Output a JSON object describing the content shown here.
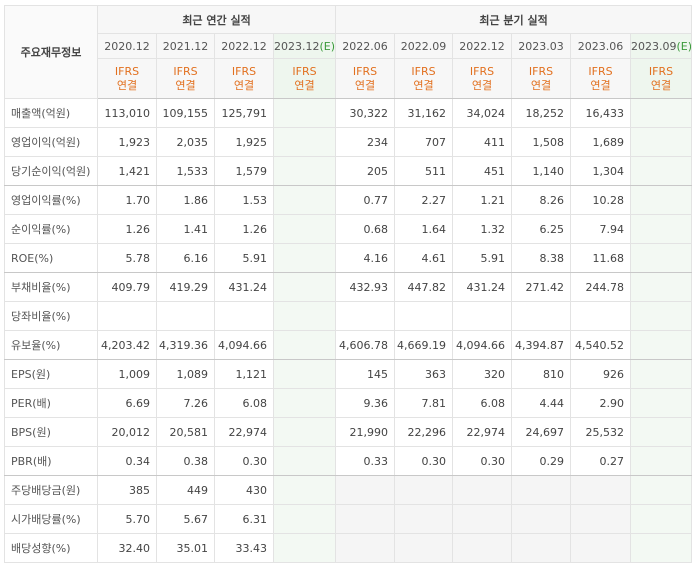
{
  "table": {
    "corner": "주요재무정보",
    "groups": [
      {
        "title": "최근 연간 실적",
        "columns": [
          {
            "period": "2020.12",
            "basis": [
              "IFRS",
              "연결"
            ]
          },
          {
            "period": "2021.12",
            "basis": [
              "IFRS",
              "연결"
            ]
          },
          {
            "period": "2022.12",
            "basis": [
              "IFRS",
              "연결"
            ]
          },
          {
            "period": "2023.12",
            "mark": "(E)",
            "basis": [
              "IFRS",
              "연결"
            ]
          }
        ]
      },
      {
        "title": "최근 분기 실적",
        "columns": [
          {
            "period": "2022.06",
            "basis": [
              "IFRS",
              "연결"
            ]
          },
          {
            "period": "2022.09",
            "basis": [
              "IFRS",
              "연결"
            ]
          },
          {
            "period": "2022.12",
            "basis": [
              "IFRS",
              "연결"
            ]
          },
          {
            "period": "2023.03",
            "basis": [
              "IFRS",
              "연결"
            ]
          },
          {
            "period": "2023.06",
            "basis": [
              "IFRS",
              "연결"
            ]
          },
          {
            "period": "2023.09",
            "mark": "(E)",
            "basis": [
              "IFRS",
              "연결"
            ]
          }
        ]
      }
    ],
    "rows": [
      {
        "label": "매출액(억원)",
        "values": [
          "113,010",
          "109,155",
          "125,791",
          null,
          "30,322",
          "31,162",
          "34,024",
          "18,252",
          "16,433",
          null
        ]
      },
      {
        "label": "영업이익(억원)",
        "values": [
          "1,923",
          "2,035",
          "1,925",
          null,
          "234",
          "707",
          "411",
          "1,508",
          "1,689",
          null
        ]
      },
      {
        "label": "당기순이익(억원)",
        "values": [
          "1,421",
          "1,533",
          "1,579",
          null,
          "205",
          "511",
          "451",
          "1,140",
          "1,304",
          null
        ]
      },
      {
        "label": "영업이익률(%)",
        "values": [
          "1.70",
          "1.86",
          "1.53",
          null,
          "0.77",
          "2.27",
          "1.21",
          "8.26",
          "10.28",
          null
        ]
      },
      {
        "label": "순이익률(%)",
        "values": [
          "1.26",
          "1.41",
          "1.26",
          null,
          "0.68",
          "1.64",
          "1.32",
          "6.25",
          "7.94",
          null
        ]
      },
      {
        "label": "ROE(%)",
        "values": [
          "5.78",
          "6.16",
          "5.91",
          null,
          "4.16",
          "4.61",
          "5.91",
          "8.38",
          "11.68",
          null
        ]
      },
      {
        "label": "부채비율(%)",
        "values": [
          "409.79",
          "419.29",
          "431.24",
          null,
          "432.93",
          "447.82",
          "431.24",
          "271.42",
          "244.78",
          null
        ]
      },
      {
        "label": "당좌비율(%)",
        "values": [
          null,
          null,
          null,
          null,
          null,
          null,
          null,
          null,
          null,
          null
        ]
      },
      {
        "label": "유보율(%)",
        "values": [
          "4,203.42",
          "4,319.36",
          "4,094.66",
          null,
          "4,606.78",
          "4,669.19",
          "4,094.66",
          "4,394.87",
          "4,540.52",
          null
        ]
      },
      {
        "label": "EPS(원)",
        "values": [
          "1,009",
          "1,089",
          "1,121",
          null,
          "145",
          "363",
          "320",
          "810",
          "926",
          null
        ]
      },
      {
        "label": "PER(배)",
        "values": [
          "6.69",
          "7.26",
          "6.08",
          null,
          "9.36",
          "7.81",
          "6.08",
          "4.44",
          "2.90",
          null
        ]
      },
      {
        "label": "BPS(원)",
        "values": [
          "20,012",
          "20,581",
          "22,974",
          null,
          "21,990",
          "22,296",
          "22,974",
          "24,697",
          "25,532",
          null
        ]
      },
      {
        "label": "PBR(배)",
        "values": [
          "0.34",
          "0.38",
          "0.30",
          null,
          "0.33",
          "0.30",
          "0.30",
          "0.29",
          "0.27",
          null
        ]
      },
      {
        "label": "주당배당금(원)",
        "values": [
          "385",
          "449",
          "430",
          null,
          null,
          null,
          null,
          null,
          null,
          null
        ]
      },
      {
        "label": "시가배당률(%)",
        "values": [
          "5.70",
          "5.67",
          "6.31",
          null,
          null,
          null,
          null,
          null,
          null,
          null
        ]
      },
      {
        "label": "배당성향(%)",
        "values": [
          "32.40",
          "35.01",
          "33.43",
          null,
          null,
          null,
          null,
          null,
          null,
          null
        ]
      }
    ]
  }
}
